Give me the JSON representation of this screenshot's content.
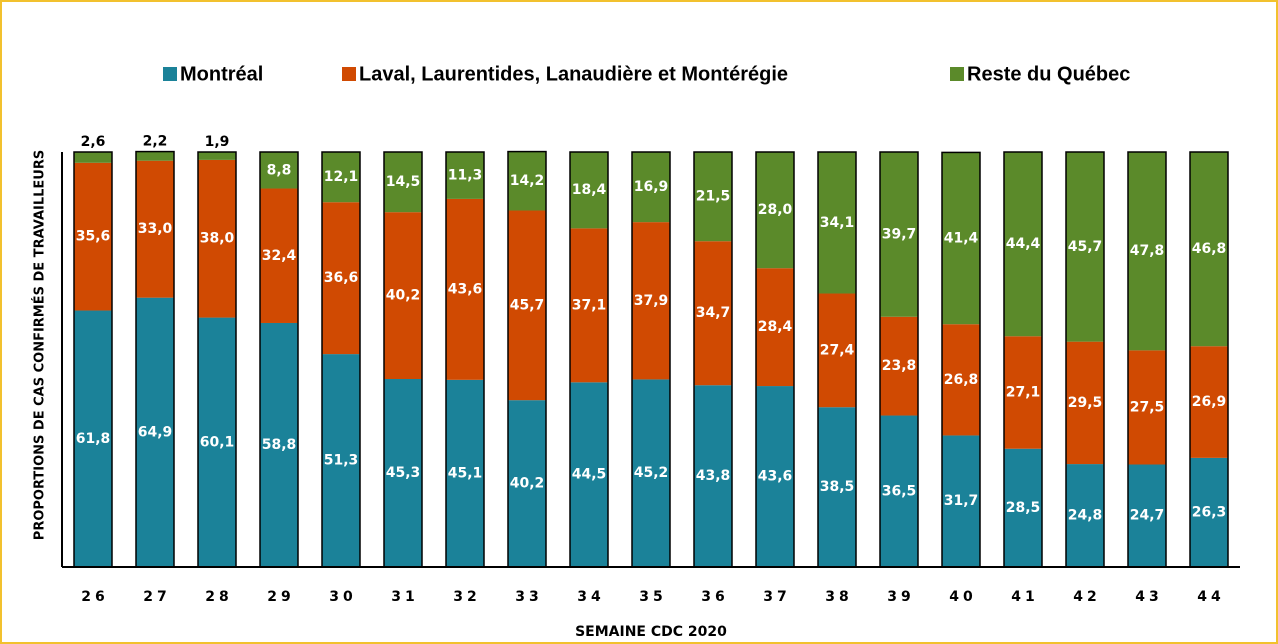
{
  "chart_data": {
    "type": "stacked_bar",
    "x_label": "SEMAINE CDC 2020",
    "y_label": "PROPORTIONS DE CAS CONFIRMÉS DE TRAVAILLEURS",
    "categories": [
      "26",
      "27",
      "28",
      "29",
      "30",
      "31",
      "32",
      "33",
      "34",
      "35",
      "36",
      "37",
      "38",
      "39",
      "40",
      "41",
      "42",
      "43",
      "44"
    ],
    "ylim": [
      0,
      100
    ],
    "series": [
      {
        "name": "Montréal",
        "color": "#1b8299",
        "values": [
          61.8,
          64.9,
          60.1,
          58.8,
          51.3,
          45.3,
          45.1,
          40.2,
          44.5,
          45.2,
          43.8,
          43.6,
          38.5,
          36.5,
          31.7,
          28.5,
          24.8,
          24.7,
          26.3
        ],
        "value_labels": [
          "61,8",
          "64,9",
          "60,1",
          "58,8",
          "51,3",
          "45,3",
          "45,1",
          "40,2",
          "44,5",
          "45,2",
          "43,8",
          "43,6",
          "38,5",
          "36,5",
          "31,7",
          "28,5",
          "24,8",
          "24,7",
          "26,3"
        ]
      },
      {
        "name": "Laval, Laurentides, Lanaudière et Montérégie",
        "color": "#d04a02",
        "values": [
          35.6,
          33.0,
          38.0,
          32.4,
          36.6,
          40.2,
          43.6,
          45.7,
          37.1,
          37.9,
          34.7,
          28.4,
          27.4,
          23.8,
          26.8,
          27.1,
          29.5,
          27.5,
          26.9
        ],
        "value_labels": [
          "35,6",
          "33,0",
          "38,0",
          "32,4",
          "36,6",
          "40,2",
          "43,6",
          "45,7",
          "37,1",
          "37,9",
          "34,7",
          "28,4",
          "27,4",
          "23,8",
          "26,8",
          "27,1",
          "29,5",
          "27,5",
          "26,9"
        ]
      },
      {
        "name": "Reste du Québec",
        "color": "#5b8a2a",
        "values": [
          2.6,
          2.2,
          1.9,
          8.8,
          12.1,
          14.5,
          11.3,
          14.2,
          18.4,
          16.9,
          21.5,
          28.0,
          34.1,
          39.7,
          41.4,
          44.4,
          45.7,
          47.8,
          46.8
        ],
        "value_labels": [
          "2,6",
          "2,2",
          "1,9",
          "8,8",
          "12,1",
          "14,5",
          "11,3",
          "14,2",
          "18,4",
          "16,9",
          "21,5",
          "28,0",
          "34,1",
          "39,7",
          "41,4",
          "44,4",
          "45,7",
          "47,8",
          "46,8"
        ]
      }
    ],
    "legend": "top"
  }
}
